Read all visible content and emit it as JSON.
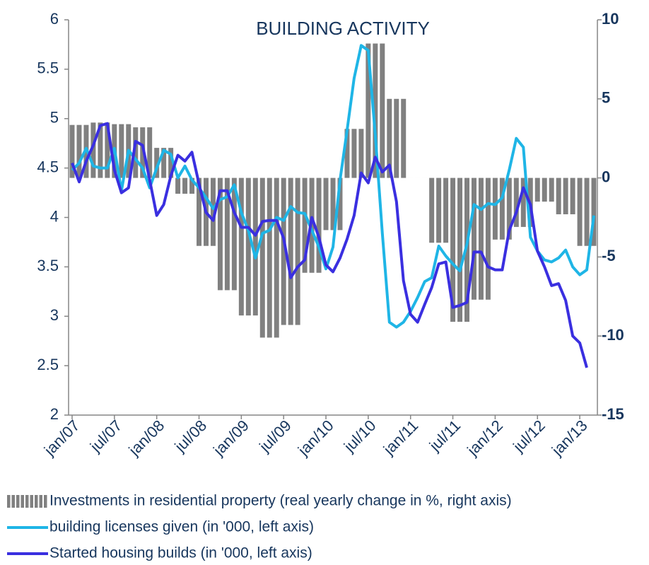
{
  "chart_data": {
    "type": "combo",
    "title": "BUILDING ACTIVITY",
    "categories": [
      "jan/07",
      null,
      null,
      null,
      null,
      null,
      "jul/07",
      null,
      null,
      null,
      null,
      null,
      "jan/08",
      null,
      null,
      null,
      null,
      null,
      "jul/08",
      null,
      null,
      null,
      null,
      null,
      "jan/09",
      null,
      null,
      null,
      null,
      null,
      "jul/09",
      null,
      null,
      null,
      null,
      null,
      "jan/10",
      null,
      null,
      null,
      null,
      null,
      "jul/10",
      null,
      null,
      null,
      null,
      null,
      "jan/11",
      null,
      null,
      null,
      null,
      null,
      "jul/11",
      null,
      null,
      null,
      null,
      null,
      "jan/12",
      null,
      null,
      null,
      null,
      null,
      "jul/12",
      null,
      null,
      null,
      null,
      null,
      "jan/13",
      null,
      null
    ],
    "ylim": [
      2,
      6
    ],
    "yticks": [
      2,
      2.5,
      3,
      3.5,
      4,
      4.5,
      5,
      5.5,
      6
    ],
    "y2lim": [
      -15,
      10
    ],
    "y2ticks": [
      -15,
      -10,
      -5,
      0,
      5,
      10
    ],
    "legend": "bottom",
    "series": [
      {
        "name": "Investments in residential property (real yearly change in %, right axis)",
        "type": "bar",
        "axis": "y2",
        "color": "#808080",
        "values": [
          3.35,
          3.35,
          3.35,
          3.5,
          3.5,
          3.5,
          3.4,
          3.4,
          3.4,
          3.2,
          3.2,
          3.2,
          1.9,
          1.9,
          1.9,
          -1,
          -1,
          -1,
          -4.3,
          -4.3,
          -4.3,
          -7.1,
          -7.1,
          -7.1,
          -8.7,
          -8.7,
          -8.7,
          -10.1,
          -10.1,
          -10.1,
          -9.3,
          -9.3,
          -9.3,
          -6,
          -6,
          -6,
          -3.3,
          -3.3,
          -3.3,
          3.1,
          3.1,
          3.1,
          8.5,
          8.5,
          8.5,
          5,
          5,
          5,
          0,
          0,
          0,
          -4.1,
          -4.1,
          -4.1,
          -9.1,
          -9.1,
          -9.1,
          -7.7,
          -7.7,
          -7.7,
          -3.9,
          -3.9,
          -3.9,
          -3.1,
          -3.1,
          -3.1,
          -1.5,
          -1.5,
          -1.5,
          -2.3,
          -2.3,
          -2.3,
          -4.3,
          -4.3,
          -4.3
        ]
      },
      {
        "name": "building licenses given (in '000, left axis)",
        "type": "line",
        "color": "#1fb5e6",
        "values": [
          4.48,
          4.55,
          4.7,
          4.52,
          4.5,
          4.5,
          4.7,
          4.27,
          4.68,
          4.59,
          4.5,
          4.3,
          4.5,
          4.68,
          4.64,
          4.4,
          4.52,
          4.38,
          4.3,
          4.2,
          4.09,
          4.18,
          4.21,
          4.33,
          4.05,
          3.87,
          3.59,
          3.84,
          3.87,
          4,
          3.97,
          4.11,
          4.05,
          4.04,
          3.87,
          3.7,
          3.48,
          3.7,
          4.38,
          4.88,
          5.41,
          5.74,
          5.69,
          4.84,
          3.84,
          2.94,
          2.89,
          2.94,
          3.05,
          3.19,
          3.35,
          3.39,
          3.71,
          3.61,
          3.53,
          3.46,
          3.73,
          4.13,
          4.08,
          4.14,
          4.13,
          4.2,
          4.48,
          4.8,
          4.71,
          3.8,
          3.66,
          3.57,
          3.55,
          3.59,
          3.67,
          3.5,
          3.42,
          3.47,
          4.02
        ]
      },
      {
        "name": "Started housing builds (in '000, left axis)",
        "type": "line",
        "color": "#3a2fe0",
        "values": [
          4.55,
          4.36,
          4.57,
          4.73,
          4.93,
          4.95,
          4.48,
          4.25,
          4.3,
          4.77,
          4.73,
          4.38,
          4.02,
          4.13,
          4.42,
          4.63,
          4.57,
          4.66,
          4.34,
          4.05,
          3.97,
          4.27,
          4.27,
          4.05,
          3.9,
          3.9,
          3.82,
          3.96,
          3.97,
          3.97,
          3.79,
          3.39,
          3.5,
          3.57,
          4,
          3.8,
          3.52,
          3.45,
          3.59,
          3.78,
          4.02,
          4.45,
          4.35,
          4.61,
          4.46,
          4.53,
          4.16,
          3.36,
          3.02,
          2.94,
          3.12,
          3.29,
          3.53,
          3.55,
          3.09,
          3.11,
          3.14,
          3.65,
          3.65,
          3.5,
          3.47,
          3.47,
          3.87,
          4.05,
          4.3,
          4.13,
          3.66,
          3.5,
          3.31,
          3.33,
          3.16,
          2.8,
          2.73,
          2.48,
          null
        ]
      }
    ]
  }
}
